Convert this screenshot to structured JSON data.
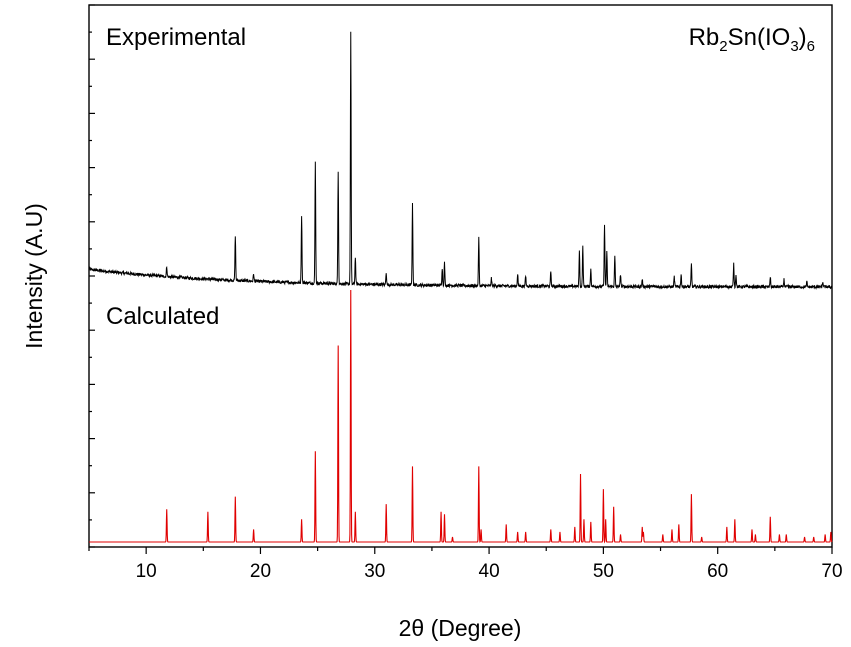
{
  "chart_data": {
    "type": "line",
    "xlabel": "2θ (Degree)",
    "ylabel": "Intensity (A.U)",
    "xlim": [
      5,
      70
    ],
    "x_ticks": [
      10,
      20,
      30,
      40,
      50,
      60,
      70
    ],
    "y_ticks_labeled": false,
    "compound_label": {
      "main": "Rb",
      "sub1": "2",
      "mid": "Sn(IO",
      "sub2": "3",
      "close": ")",
      "sub3": "6"
    },
    "panels": {
      "experimental": "Experimental",
      "calculated": "Calculated"
    },
    "colors": {
      "experimental": "#000000",
      "calculated": "#e00000"
    },
    "y_units": "normalized intensity (max peak = 1.0)",
    "series": [
      {
        "name": "Experimental",
        "baseline_start": 0.07,
        "baseline_end": 0.0,
        "noise": 0.012,
        "peaks": [
          [
            11.8,
            0.04
          ],
          [
            17.8,
            0.18
          ],
          [
            19.4,
            0.03
          ],
          [
            23.6,
            0.27
          ],
          [
            24.8,
            0.48
          ],
          [
            26.8,
            0.45
          ],
          [
            27.9,
            1.0
          ],
          [
            28.3,
            0.11
          ],
          [
            31.0,
            0.05
          ],
          [
            33.3,
            0.32
          ],
          [
            35.9,
            0.07
          ],
          [
            36.1,
            0.09
          ],
          [
            39.1,
            0.19
          ],
          [
            40.2,
            0.03
          ],
          [
            42.5,
            0.05
          ],
          [
            43.2,
            0.04
          ],
          [
            45.4,
            0.06
          ],
          [
            47.9,
            0.14
          ],
          [
            48.2,
            0.16
          ],
          [
            48.9,
            0.07
          ],
          [
            50.1,
            0.25
          ],
          [
            50.3,
            0.14
          ],
          [
            51.0,
            0.12
          ],
          [
            51.5,
            0.05
          ],
          [
            53.4,
            0.03
          ],
          [
            56.2,
            0.04
          ],
          [
            56.8,
            0.05
          ],
          [
            57.7,
            0.09
          ],
          [
            61.4,
            0.09
          ],
          [
            61.6,
            0.05
          ],
          [
            64.6,
            0.04
          ],
          [
            65.8,
            0.03
          ],
          [
            67.8,
            0.02
          ],
          [
            69.2,
            0.02
          ]
        ]
      },
      {
        "name": "Calculated",
        "baseline_start": 0.0,
        "baseline_end": 0.0,
        "noise": 0.0,
        "peaks": [
          [
            11.8,
            0.13
          ],
          [
            15.4,
            0.12
          ],
          [
            17.8,
            0.18
          ],
          [
            19.4,
            0.05
          ],
          [
            23.6,
            0.09
          ],
          [
            24.8,
            0.36
          ],
          [
            26.8,
            0.78
          ],
          [
            27.9,
            1.0
          ],
          [
            28.3,
            0.12
          ],
          [
            31.0,
            0.15
          ],
          [
            33.3,
            0.3
          ],
          [
            35.8,
            0.12
          ],
          [
            36.1,
            0.11
          ],
          [
            36.8,
            0.02
          ],
          [
            39.1,
            0.3
          ],
          [
            39.3,
            0.05
          ],
          [
            41.5,
            0.07
          ],
          [
            42.5,
            0.04
          ],
          [
            43.2,
            0.04
          ],
          [
            45.4,
            0.05
          ],
          [
            46.2,
            0.04
          ],
          [
            47.5,
            0.06
          ],
          [
            48.0,
            0.27
          ],
          [
            48.3,
            0.09
          ],
          [
            48.9,
            0.08
          ],
          [
            50.0,
            0.21
          ],
          [
            50.2,
            0.09
          ],
          [
            50.9,
            0.14
          ],
          [
            51.5,
            0.03
          ],
          [
            53.4,
            0.06
          ],
          [
            53.5,
            0.04
          ],
          [
            55.2,
            0.03
          ],
          [
            56.0,
            0.05
          ],
          [
            56.6,
            0.07
          ],
          [
            57.7,
            0.19
          ],
          [
            58.6,
            0.02
          ],
          [
            60.8,
            0.06
          ],
          [
            61.5,
            0.09
          ],
          [
            63.0,
            0.05
          ],
          [
            63.3,
            0.03
          ],
          [
            64.6,
            0.1
          ],
          [
            65.4,
            0.03
          ],
          [
            66.0,
            0.03
          ],
          [
            67.6,
            0.02
          ],
          [
            68.4,
            0.02
          ],
          [
            69.4,
            0.03
          ],
          [
            69.9,
            0.04
          ]
        ]
      }
    ]
  }
}
